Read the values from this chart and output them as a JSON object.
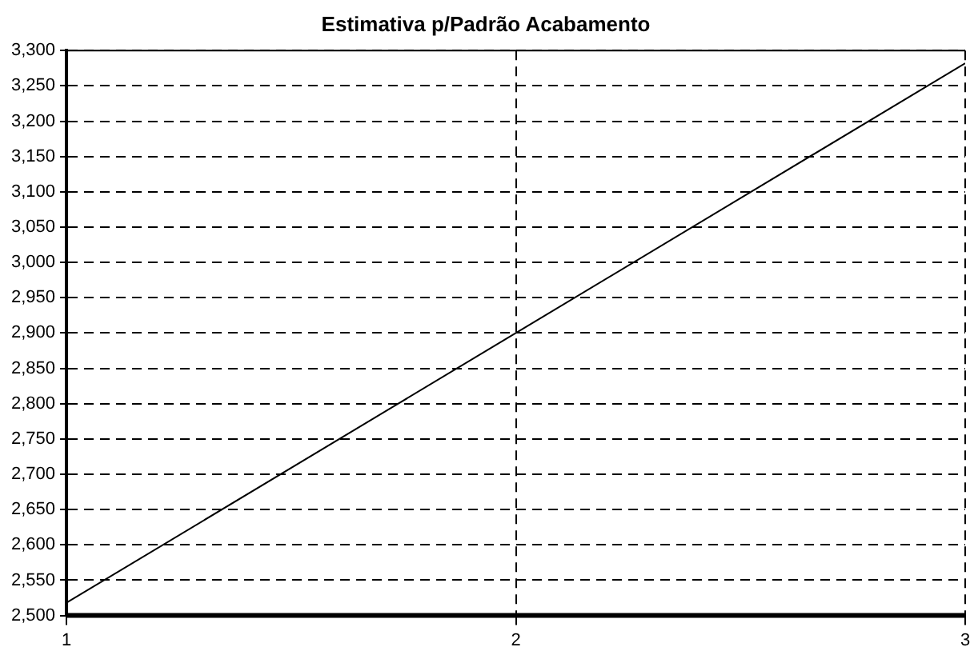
{
  "chart_data": {
    "type": "line",
    "title": "Estimativa p/Padrão Acabamento",
    "x": [
      1,
      2,
      3
    ],
    "series": [
      {
        "color": "#000000",
        "values": [
          2518,
          2900,
          3282
        ]
      }
    ],
    "xlim": [
      1,
      3
    ],
    "xticks": [
      1,
      2,
      3
    ],
    "ylim": [
      2500,
      3300
    ],
    "yticks": [
      {
        "value": 2500,
        "label": "2,500"
      },
      {
        "value": 2550,
        "label": "2,550"
      },
      {
        "value": 2600,
        "label": "2,600"
      },
      {
        "value": 2650,
        "label": "2,650"
      },
      {
        "value": 2700,
        "label": "2,700"
      },
      {
        "value": 2750,
        "label": "2,750"
      },
      {
        "value": 2800,
        "label": "2,800"
      },
      {
        "value": 2850,
        "label": "2,850"
      },
      {
        "value": 2900,
        "label": "2,900"
      },
      {
        "value": 2950,
        "label": "2,950"
      },
      {
        "value": 3000,
        "label": "3,000"
      },
      {
        "value": 3050,
        "label": "3,050"
      },
      {
        "value": 3100,
        "label": "3,100"
      },
      {
        "value": 3150,
        "label": "3,150"
      },
      {
        "value": 3200,
        "label": "3,200"
      },
      {
        "value": 3250,
        "label": "3,250"
      },
      {
        "value": 3300,
        "label": "3,300"
      }
    ],
    "grid": true,
    "marker": "none",
    "line_style": "solid"
  }
}
